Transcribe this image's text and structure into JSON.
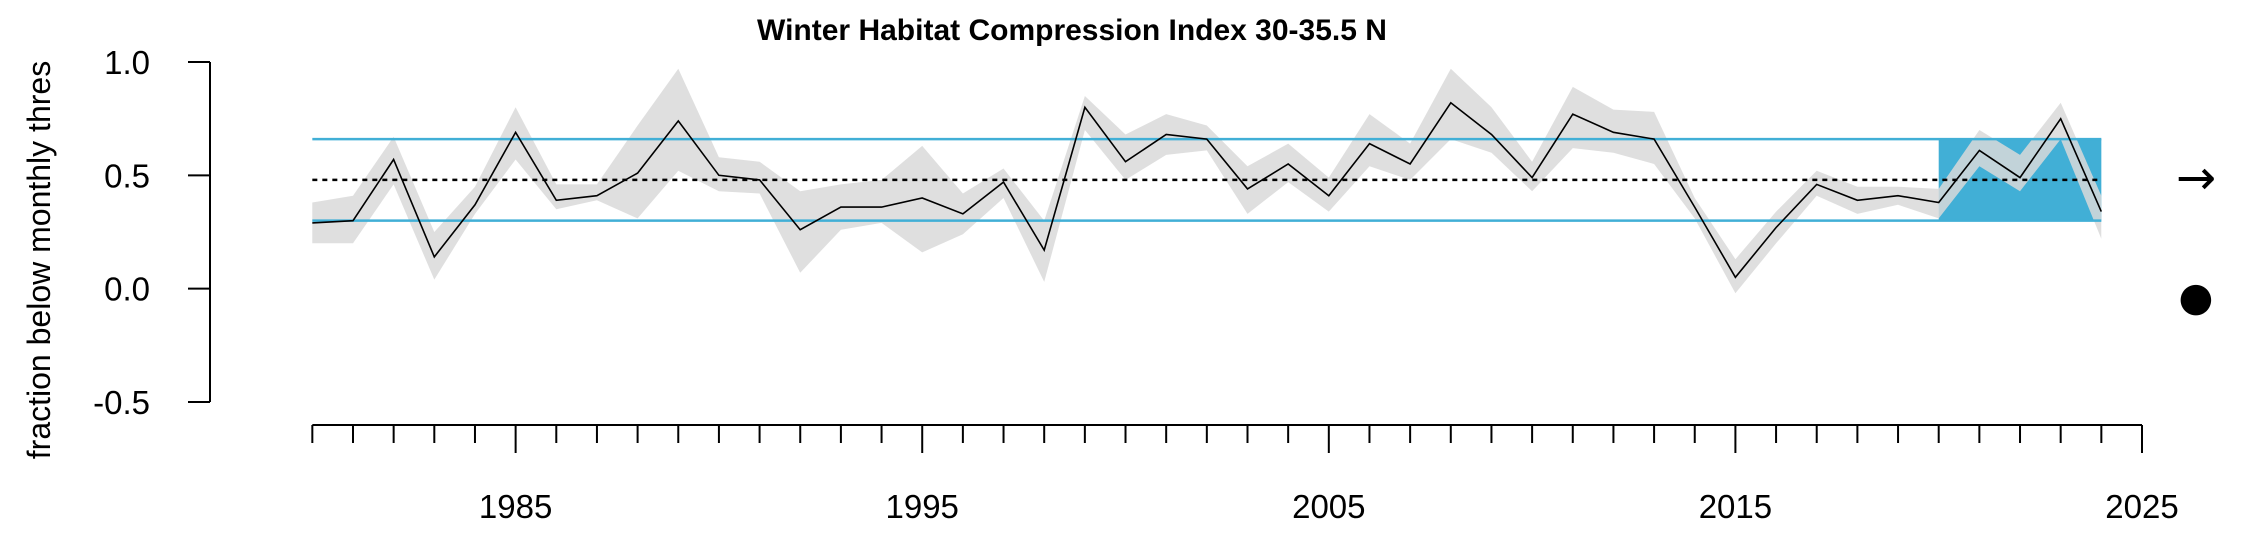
{
  "chart_data": {
    "type": "line",
    "title": "Winter Habitat Compression Index 30-35.5 N",
    "ylabel": "fraction below monthly thres",
    "xlabel": "",
    "xlim": [
      1979.5,
      2025
    ],
    "ylim": [
      -0.5,
      1.0
    ],
    "y_ticks": [
      1.0,
      0.5,
      0.0,
      -0.5
    ],
    "y_tick_labels": [
      "1.0",
      "0.5",
      "0.0",
      "-0.5"
    ],
    "x_labeled_ticks": [
      1985,
      1995,
      2005,
      2015,
      2025
    ],
    "x_minor_ticks_from": 1980,
    "x_minor_ticks_to": 2025,
    "colors": {
      "line": "#000000",
      "band": "#d9d9d9",
      "threshold": "#41afd6",
      "highlight": "#41afd6",
      "mean": "#000000"
    },
    "mean": 0.48,
    "upper_sd": 0.66,
    "lower_sd": 0.3,
    "highlight_range": [
      2020,
      2024
    ],
    "x": [
      1980,
      1981,
      1982,
      1983,
      1984,
      1985,
      1986,
      1987,
      1988,
      1989,
      1990,
      1991,
      1992,
      1993,
      1994,
      1995,
      1996,
      1997,
      1998,
      1999,
      2000,
      2001,
      2002,
      2003,
      2004,
      2005,
      2006,
      2007,
      2008,
      2009,
      2010,
      2011,
      2012,
      2013,
      2014,
      2015,
      2016,
      2017,
      2018,
      2019,
      2020,
      2021,
      2022,
      2023,
      2024
    ],
    "series": [
      {
        "values": [
          0.29,
          0.3,
          0.57,
          0.14,
          0.37,
          0.69,
          0.39,
          0.41,
          0.51,
          0.74,
          0.5,
          0.48,
          0.26,
          0.36,
          0.36,
          0.4,
          0.33,
          0.47,
          0.17,
          0.8,
          0.56,
          0.68,
          0.66,
          0.44,
          0.55,
          0.41,
          0.64,
          0.55,
          0.82,
          0.68,
          0.49,
          0.77,
          0.69,
          0.66,
          0.36,
          0.05,
          0.27,
          0.46,
          0.39,
          0.41,
          0.38,
          0.61,
          0.49,
          0.75,
          0.34
        ],
        "upper": [
          0.38,
          0.41,
          0.67,
          0.25,
          0.45,
          0.8,
          0.46,
          0.46,
          0.72,
          0.97,
          0.58,
          0.56,
          0.43,
          0.46,
          0.48,
          0.63,
          0.42,
          0.53,
          0.3,
          0.85,
          0.68,
          0.77,
          0.72,
          0.54,
          0.64,
          0.49,
          0.77,
          0.64,
          0.97,
          0.8,
          0.56,
          0.89,
          0.79,
          0.78,
          0.4,
          0.13,
          0.34,
          0.52,
          0.45,
          0.45,
          0.44,
          0.7,
          0.59,
          0.82,
          0.41
        ],
        "lower": [
          0.2,
          0.2,
          0.46,
          0.04,
          0.33,
          0.57,
          0.35,
          0.39,
          0.31,
          0.52,
          0.43,
          0.42,
          0.07,
          0.26,
          0.29,
          0.16,
          0.24,
          0.4,
          0.03,
          0.7,
          0.48,
          0.59,
          0.61,
          0.33,
          0.47,
          0.34,
          0.54,
          0.48,
          0.66,
          0.6,
          0.43,
          0.62,
          0.6,
          0.55,
          0.31,
          -0.02,
          0.2,
          0.41,
          0.33,
          0.37,
          0.31,
          0.54,
          0.43,
          0.66,
          0.22
        ]
      }
    ],
    "trend_symbol": "→",
    "status_marker": "●",
    "status_marker_y": -0.04
  }
}
